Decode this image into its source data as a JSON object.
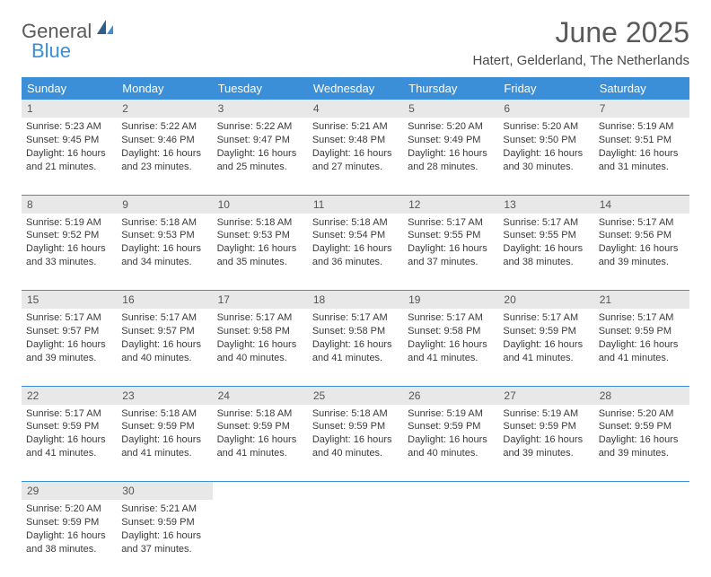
{
  "brand": {
    "part1": "General",
    "part2": "Blue"
  },
  "title": "June 2025",
  "location": "Hatert, Gelderland, The Netherlands",
  "colors": {
    "accent": "#3a8fd8",
    "header_bg": "#3a8fd8",
    "header_text": "#ffffff",
    "daynum_bg": "#e8e8e8",
    "text": "#3a3a3a",
    "title_color": "#5a5a5a"
  },
  "dayNames": [
    "Sunday",
    "Monday",
    "Tuesday",
    "Wednesday",
    "Thursday",
    "Friday",
    "Saturday"
  ],
  "weeks": [
    [
      {
        "n": "1",
        "sr": "Sunrise: 5:23 AM",
        "ss": "Sunset: 9:45 PM",
        "d1": "Daylight: 16 hours",
        "d2": "and 21 minutes."
      },
      {
        "n": "2",
        "sr": "Sunrise: 5:22 AM",
        "ss": "Sunset: 9:46 PM",
        "d1": "Daylight: 16 hours",
        "d2": "and 23 minutes."
      },
      {
        "n": "3",
        "sr": "Sunrise: 5:22 AM",
        "ss": "Sunset: 9:47 PM",
        "d1": "Daylight: 16 hours",
        "d2": "and 25 minutes."
      },
      {
        "n": "4",
        "sr": "Sunrise: 5:21 AM",
        "ss": "Sunset: 9:48 PM",
        "d1": "Daylight: 16 hours",
        "d2": "and 27 minutes."
      },
      {
        "n": "5",
        "sr": "Sunrise: 5:20 AM",
        "ss": "Sunset: 9:49 PM",
        "d1": "Daylight: 16 hours",
        "d2": "and 28 minutes."
      },
      {
        "n": "6",
        "sr": "Sunrise: 5:20 AM",
        "ss": "Sunset: 9:50 PM",
        "d1": "Daylight: 16 hours",
        "d2": "and 30 minutes."
      },
      {
        "n": "7",
        "sr": "Sunrise: 5:19 AM",
        "ss": "Sunset: 9:51 PM",
        "d1": "Daylight: 16 hours",
        "d2": "and 31 minutes."
      }
    ],
    [
      {
        "n": "8",
        "sr": "Sunrise: 5:19 AM",
        "ss": "Sunset: 9:52 PM",
        "d1": "Daylight: 16 hours",
        "d2": "and 33 minutes."
      },
      {
        "n": "9",
        "sr": "Sunrise: 5:18 AM",
        "ss": "Sunset: 9:53 PM",
        "d1": "Daylight: 16 hours",
        "d2": "and 34 minutes."
      },
      {
        "n": "10",
        "sr": "Sunrise: 5:18 AM",
        "ss": "Sunset: 9:53 PM",
        "d1": "Daylight: 16 hours",
        "d2": "and 35 minutes."
      },
      {
        "n": "11",
        "sr": "Sunrise: 5:18 AM",
        "ss": "Sunset: 9:54 PM",
        "d1": "Daylight: 16 hours",
        "d2": "and 36 minutes."
      },
      {
        "n": "12",
        "sr": "Sunrise: 5:17 AM",
        "ss": "Sunset: 9:55 PM",
        "d1": "Daylight: 16 hours",
        "d2": "and 37 minutes."
      },
      {
        "n": "13",
        "sr": "Sunrise: 5:17 AM",
        "ss": "Sunset: 9:55 PM",
        "d1": "Daylight: 16 hours",
        "d2": "and 38 minutes."
      },
      {
        "n": "14",
        "sr": "Sunrise: 5:17 AM",
        "ss": "Sunset: 9:56 PM",
        "d1": "Daylight: 16 hours",
        "d2": "and 39 minutes."
      }
    ],
    [
      {
        "n": "15",
        "sr": "Sunrise: 5:17 AM",
        "ss": "Sunset: 9:57 PM",
        "d1": "Daylight: 16 hours",
        "d2": "and 39 minutes."
      },
      {
        "n": "16",
        "sr": "Sunrise: 5:17 AM",
        "ss": "Sunset: 9:57 PM",
        "d1": "Daylight: 16 hours",
        "d2": "and 40 minutes."
      },
      {
        "n": "17",
        "sr": "Sunrise: 5:17 AM",
        "ss": "Sunset: 9:58 PM",
        "d1": "Daylight: 16 hours",
        "d2": "and 40 minutes."
      },
      {
        "n": "18",
        "sr": "Sunrise: 5:17 AM",
        "ss": "Sunset: 9:58 PM",
        "d1": "Daylight: 16 hours",
        "d2": "and 41 minutes."
      },
      {
        "n": "19",
        "sr": "Sunrise: 5:17 AM",
        "ss": "Sunset: 9:58 PM",
        "d1": "Daylight: 16 hours",
        "d2": "and 41 minutes."
      },
      {
        "n": "20",
        "sr": "Sunrise: 5:17 AM",
        "ss": "Sunset: 9:59 PM",
        "d1": "Daylight: 16 hours",
        "d2": "and 41 minutes."
      },
      {
        "n": "21",
        "sr": "Sunrise: 5:17 AM",
        "ss": "Sunset: 9:59 PM",
        "d1": "Daylight: 16 hours",
        "d2": "and 41 minutes."
      }
    ],
    [
      {
        "n": "22",
        "sr": "Sunrise: 5:17 AM",
        "ss": "Sunset: 9:59 PM",
        "d1": "Daylight: 16 hours",
        "d2": "and 41 minutes."
      },
      {
        "n": "23",
        "sr": "Sunrise: 5:18 AM",
        "ss": "Sunset: 9:59 PM",
        "d1": "Daylight: 16 hours",
        "d2": "and 41 minutes."
      },
      {
        "n": "24",
        "sr": "Sunrise: 5:18 AM",
        "ss": "Sunset: 9:59 PM",
        "d1": "Daylight: 16 hours",
        "d2": "and 41 minutes."
      },
      {
        "n": "25",
        "sr": "Sunrise: 5:18 AM",
        "ss": "Sunset: 9:59 PM",
        "d1": "Daylight: 16 hours",
        "d2": "and 40 minutes."
      },
      {
        "n": "26",
        "sr": "Sunrise: 5:19 AM",
        "ss": "Sunset: 9:59 PM",
        "d1": "Daylight: 16 hours",
        "d2": "and 40 minutes."
      },
      {
        "n": "27",
        "sr": "Sunrise: 5:19 AM",
        "ss": "Sunset: 9:59 PM",
        "d1": "Daylight: 16 hours",
        "d2": "and 39 minutes."
      },
      {
        "n": "28",
        "sr": "Sunrise: 5:20 AM",
        "ss": "Sunset: 9:59 PM",
        "d1": "Daylight: 16 hours",
        "d2": "and 39 minutes."
      }
    ],
    [
      {
        "n": "29",
        "sr": "Sunrise: 5:20 AM",
        "ss": "Sunset: 9:59 PM",
        "d1": "Daylight: 16 hours",
        "d2": "and 38 minutes."
      },
      {
        "n": "30",
        "sr": "Sunrise: 5:21 AM",
        "ss": "Sunset: 9:59 PM",
        "d1": "Daylight: 16 hours",
        "d2": "and 37 minutes."
      },
      null,
      null,
      null,
      null,
      null
    ]
  ]
}
